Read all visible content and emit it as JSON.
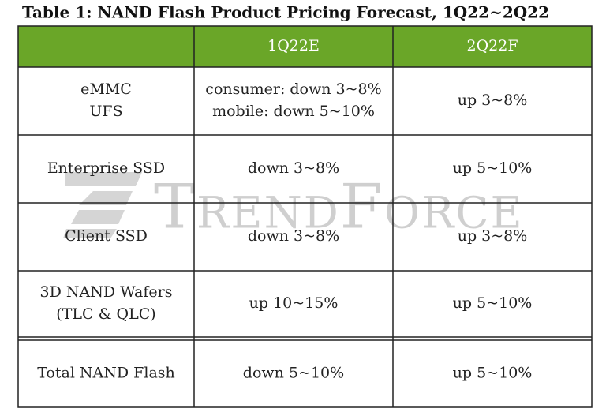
{
  "title": "Table 1: NAND Flash Product Pricing Forecast, 1Q22~2Q22",
  "table": {
    "header": [
      "",
      "1Q22E",
      "2Q22F"
    ],
    "rows": [
      [
        [
          "eMMC",
          "UFS"
        ],
        [
          "consumer: down 3~8%",
          "mobile: down 5~10%"
        ],
        [
          "up 3~8%"
        ]
      ],
      [
        [
          "Enterprise SSD"
        ],
        [
          "down 3~8%"
        ],
        [
          "up 5~10%"
        ]
      ],
      [
        [
          "Client SSD"
        ],
        [
          "down 3~8%"
        ],
        [
          "up 3~8%"
        ]
      ],
      [
        [
          "3D NAND Wafers",
          "(TLC & QLC)"
        ],
        [
          "up 10~15%"
        ],
        [
          "up 5~10%"
        ]
      ],
      [
        [
          "Total NAND Flash"
        ],
        [
          "down 5~10%"
        ],
        [
          "up 5~10%"
        ]
      ]
    ]
  },
  "watermark": "TrendForce"
}
